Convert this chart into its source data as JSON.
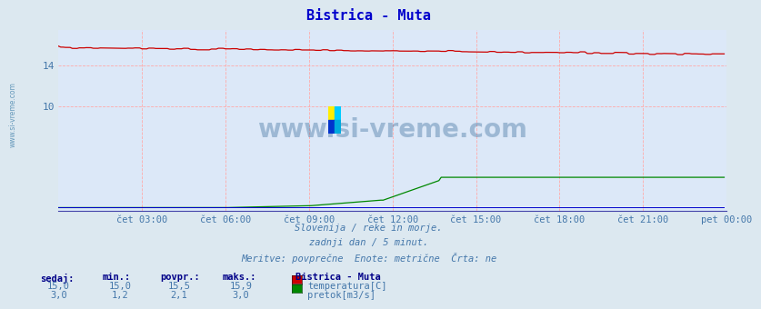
{
  "title": "Bistrica - Muta",
  "bg_color": "#dce8f0",
  "plot_bg_color": "#dce8f8",
  "title_color": "#0000cc",
  "grid_color": "#ffaaaa",
  "axis_color": "#4444aa",
  "tick_color": "#4477aa",
  "watermark": "www.si-vreme.com",
  "watermark_color": "#1a5588",
  "side_text": "www.si-vreme.com",
  "side_text_color": "#6699bb",
  "footer_lines": [
    "Slovenija / reke in morje.",
    "zadnji dan / 5 minut.",
    "Meritve: povprečne  Enote: metrične  Črta: ne"
  ],
  "footer_color": "#4477aa",
  "legend_title": "Bistrica - Muta",
  "legend_header_color": "#000088",
  "legend_value_color": "#4477aa",
  "temp_color": "#cc0000",
  "flow_color": "#008800",
  "level_color": "#0000cc",
  "ylim_min": -0.3,
  "ylim_max": 17.5,
  "xlim_min": 0,
  "xlim_max": 288,
  "ytick_positions": [
    10,
    14
  ],
  "ytick_labels": [
    "10",
    "14"
  ],
  "xtick_positions": [
    36,
    72,
    108,
    144,
    180,
    216,
    252,
    288
  ],
  "xtick_labels": [
    "čet 03:00",
    "čet 06:00",
    "čet 09:00",
    "čet 12:00",
    "čet 15:00",
    "čet 18:00",
    "čet 21:00",
    "pet 00:00"
  ],
  "temp_sedaj": "15,0",
  "temp_min": "15,0",
  "temp_povpr": "15,5",
  "temp_maks": "15,9",
  "flow_sedaj": "3,0",
  "flow_min": "1,2",
  "flow_povpr": "2,1",
  "flow_maks": "3,0"
}
